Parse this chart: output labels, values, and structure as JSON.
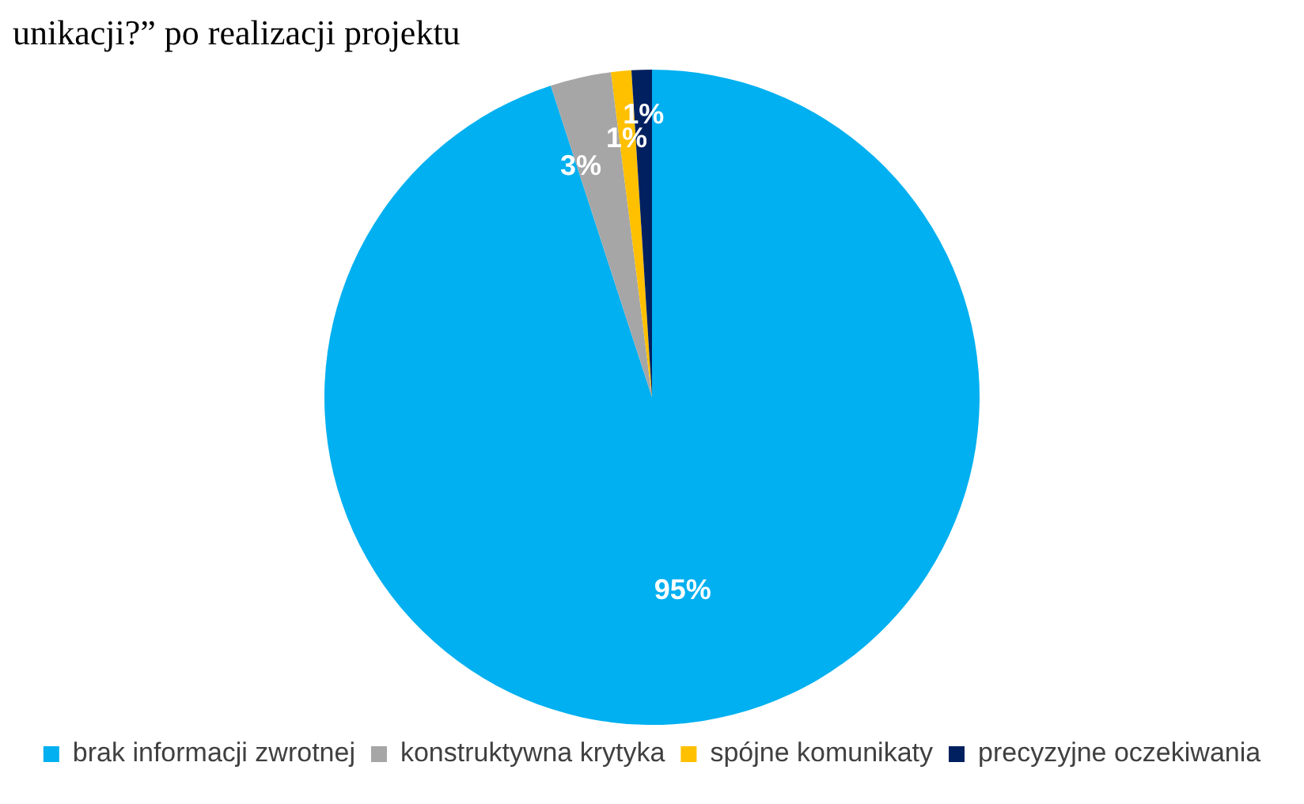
{
  "chart_data": {
    "type": "pie",
    "title": "unikacji?” po realizacji projektu",
    "categories": [
      "brak informacji zwrotnej",
      "konstruktywna krytyka",
      "spójne komunikaty",
      "precyzyjne oczekiwania"
    ],
    "values": [
      95,
      3,
      1,
      1
    ],
    "colors": [
      "#00b0f0",
      "#a6a6a6",
      "#ffc000",
      "#002060"
    ],
    "value_labels": [
      "95%",
      "3%",
      "1%",
      "1%"
    ],
    "legend": "bottom"
  }
}
